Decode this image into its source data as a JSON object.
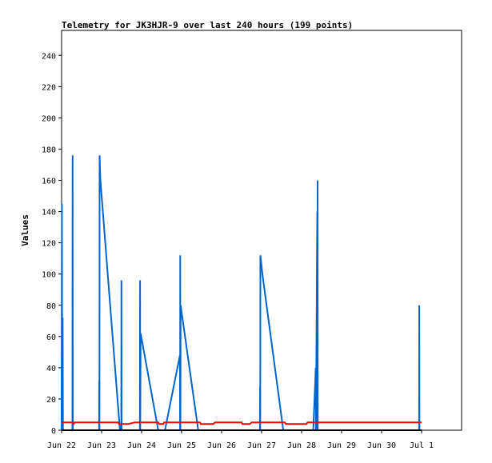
{
  "chart_data": {
    "type": "line",
    "title": "Telemetry for JK3HJR-9 over last 240 hours (199 points)",
    "xlabel": "",
    "ylabel": "Values",
    "ylim": [
      0,
      256
    ],
    "xlim": [
      0,
      240
    ],
    "yticks": [
      0,
      20,
      40,
      60,
      80,
      100,
      120,
      140,
      160,
      180,
      200,
      220,
      240
    ],
    "xticks": [
      {
        "hour": 0,
        "label": "Jun 22"
      },
      {
        "hour": 24,
        "label": "Jun 23"
      },
      {
        "hour": 48,
        "label": "Jun 24"
      },
      {
        "hour": 72,
        "label": "Jun 25"
      },
      {
        "hour": 96,
        "label": "Jun 26"
      },
      {
        "hour": 120,
        "label": "Jun 27"
      },
      {
        "hour": 144,
        "label": "Jun 28"
      },
      {
        "hour": 168,
        "label": "Jun 29"
      },
      {
        "hour": 192,
        "label": "Jun 30"
      },
      {
        "hour": 216,
        "label": "Jul 1"
      }
    ],
    "grid": false,
    "series": [
      {
        "color": "#0066cc",
        "points": [
          [
            0,
            0
          ],
          [
            0.2,
            145
          ],
          [
            0.4,
            0
          ],
          [
            0.6,
            72
          ],
          [
            0.8,
            0
          ],
          [
            6.5,
            0
          ],
          [
            6.6,
            176
          ],
          [
            6.7,
            0
          ],
          [
            22.5,
            0
          ],
          [
            22.6,
            32
          ],
          [
            22.7,
            0
          ],
          [
            22.8,
            176
          ],
          [
            23.3,
            160
          ],
          [
            35.0,
            0
          ],
          [
            35.8,
            0
          ],
          [
            35.9,
            96
          ],
          [
            36.0,
            0
          ],
          [
            47.0,
            0
          ],
          [
            47.1,
            96
          ],
          [
            47.2,
            0
          ],
          [
            47.4,
            62
          ],
          [
            58.0,
            0
          ],
          [
            62.0,
            0
          ],
          [
            71.0,
            48
          ],
          [
            71.1,
            0
          ],
          [
            71.2,
            112
          ],
          [
            71.3,
            0
          ],
          [
            71.4,
            80
          ],
          [
            82.0,
            0
          ],
          [
            119.0,
            0
          ],
          [
            119.1,
            28
          ],
          [
            119.2,
            0
          ],
          [
            119.3,
            112
          ],
          [
            120.5,
            100
          ],
          [
            133.0,
            0
          ],
          [
            151.0,
            0
          ],
          [
            152.5,
            40
          ],
          [
            152.6,
            0
          ],
          [
            153.4,
            140
          ],
          [
            153.5,
            0
          ],
          [
            153.6,
            160
          ],
          [
            153.7,
            0
          ],
          [
            214.5,
            0
          ],
          [
            214.6,
            80
          ],
          [
            214.7,
            0
          ]
        ]
      },
      {
        "color": "#ff0000",
        "points": [
          [
            0,
            5
          ],
          [
            7.0,
            5
          ],
          [
            7.1,
            4
          ],
          [
            8.0,
            5
          ],
          [
            34.0,
            5
          ],
          [
            34.5,
            4
          ],
          [
            38.0,
            4
          ],
          [
            40.0,
            4
          ],
          [
            44.0,
            5
          ],
          [
            58.0,
            5
          ],
          [
            58.5,
            4
          ],
          [
            61.0,
            4
          ],
          [
            61.5,
            5
          ],
          [
            83.0,
            5
          ],
          [
            83.5,
            4
          ],
          [
            91.0,
            4
          ],
          [
            92.0,
            5
          ],
          [
            108.0,
            5
          ],
          [
            108.5,
            4
          ],
          [
            113.0,
            4
          ],
          [
            114.0,
            5
          ],
          [
            134.0,
            5
          ],
          [
            134.5,
            4
          ],
          [
            147.0,
            4
          ],
          [
            147.5,
            5
          ],
          [
            216.0,
            5
          ]
        ]
      },
      {
        "color": "#000000",
        "points": [
          [
            0,
            0
          ],
          [
            216,
            0
          ]
        ]
      }
    ]
  }
}
